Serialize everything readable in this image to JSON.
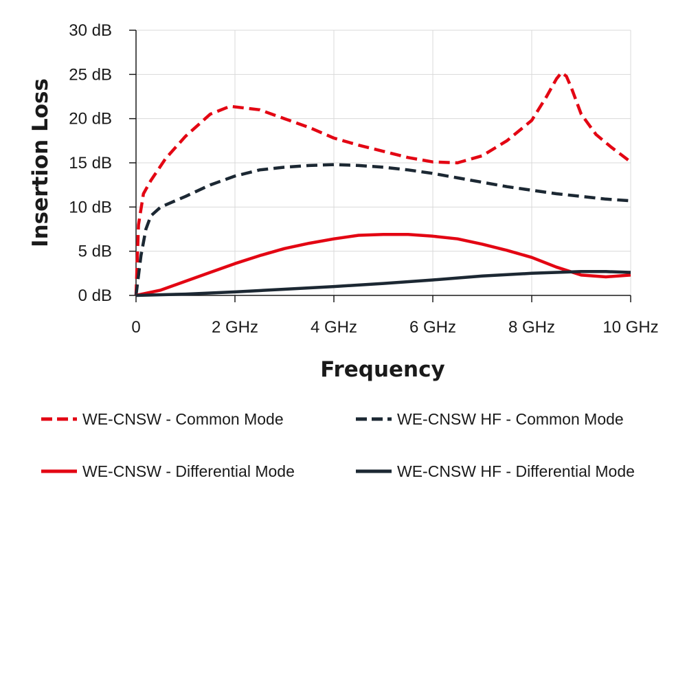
{
  "chart_data": {
    "type": "line",
    "xlabel": "Frequency",
    "ylabel": "Insertion Loss",
    "xlim": [
      0,
      10
    ],
    "ylim": [
      0,
      30
    ],
    "grid": true,
    "legend_position": "bottom",
    "x_ticks": [
      0,
      2,
      4,
      6,
      8,
      10
    ],
    "x_tick_labels": [
      "0",
      "2 GHz",
      "4 GHz",
      "6 GHz",
      "8 GHz",
      "10 GHz"
    ],
    "y_ticks": [
      0,
      5,
      10,
      15,
      20,
      25,
      30
    ],
    "y_tick_labels": [
      "0 dB",
      "5 dB",
      "10 dB",
      "15 dB",
      "20 dB",
      "25 dB",
      "30 dB"
    ],
    "series": [
      {
        "name": "WE-CNSW - Common Mode",
        "color": "#e30613",
        "style": "dashed",
        "x": [
          0,
          0.05,
          0.15,
          0.3,
          0.6,
          1.0,
          1.5,
          1.9,
          2.5,
          3.0,
          3.5,
          4.0,
          4.5,
          5.0,
          5.5,
          6.0,
          6.5,
          7.0,
          7.5,
          8.0,
          8.3,
          8.5,
          8.6,
          8.7,
          8.8,
          9.0,
          9.3,
          9.6,
          10.0
        ],
        "y": [
          0,
          8,
          11.5,
          13,
          15.5,
          18,
          20.5,
          21.4,
          21.0,
          20.0,
          19.0,
          17.8,
          17.0,
          16.3,
          15.6,
          15.1,
          15.0,
          15.8,
          17.5,
          19.8,
          22.5,
          24.5,
          25.2,
          24.8,
          23.5,
          20.5,
          18.2,
          16.8,
          15.1
        ]
      },
      {
        "name": "WE-CNSW HF - Common Mode",
        "color": "#1c2833",
        "style": "dashed",
        "x": [
          0,
          0.1,
          0.2,
          0.3,
          0.5,
          1.0,
          1.5,
          2.0,
          2.5,
          3.0,
          3.5,
          4.0,
          4.5,
          5.0,
          5.5,
          6.0,
          6.5,
          7.0,
          7.5,
          8.0,
          8.5,
          9.0,
          9.5,
          10.0
        ],
        "y": [
          0,
          4.5,
          7.5,
          9.0,
          10.0,
          11.2,
          12.5,
          13.5,
          14.2,
          14.5,
          14.7,
          14.8,
          14.7,
          14.5,
          14.2,
          13.8,
          13.3,
          12.8,
          12.3,
          11.9,
          11.5,
          11.2,
          10.9,
          10.7
        ]
      },
      {
        "name": "WE-CNSW - Differential Mode",
        "color": "#e30613",
        "style": "solid",
        "x": [
          0,
          0.5,
          1.0,
          1.5,
          2.0,
          2.5,
          3.0,
          3.5,
          4.0,
          4.5,
          5.0,
          5.5,
          6.0,
          6.5,
          7.0,
          7.5,
          8.0,
          8.5,
          9.0,
          9.5,
          10.0
        ],
        "y": [
          0,
          0.6,
          1.6,
          2.6,
          3.6,
          4.5,
          5.3,
          5.9,
          6.4,
          6.8,
          6.9,
          6.9,
          6.7,
          6.4,
          5.8,
          5.1,
          4.3,
          3.2,
          2.3,
          2.1,
          2.3
        ]
      },
      {
        "name": "WE-CNSW HF - Differential Mode",
        "color": "#1c2833",
        "style": "solid",
        "x": [
          0,
          1.0,
          2.0,
          3.0,
          4.0,
          5.0,
          6.0,
          7.0,
          8.0,
          8.5,
          9.0,
          9.5,
          10.0
        ],
        "y": [
          0,
          0.15,
          0.4,
          0.7,
          1.0,
          1.35,
          1.75,
          2.2,
          2.5,
          2.6,
          2.7,
          2.7,
          2.6
        ]
      }
    ]
  }
}
